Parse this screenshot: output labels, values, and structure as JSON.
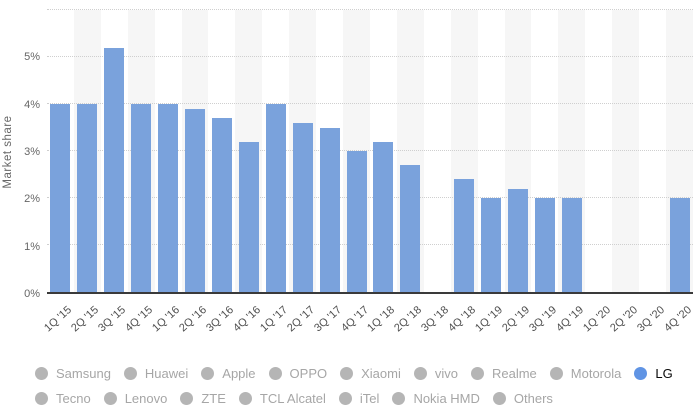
{
  "chart_data": {
    "type": "bar",
    "title": "",
    "xlabel": "",
    "ylabel": "Market share",
    "unit": "%",
    "categories": [
      "1Q '15",
      "2Q '15",
      "3Q '15",
      "4Q '15",
      "1Q '16",
      "2Q '16",
      "3Q '16",
      "4Q '16",
      "1Q '17",
      "2Q '17",
      "3Q '17",
      "4Q '17",
      "1Q '18",
      "2Q '18",
      "3Q '18",
      "4Q '18",
      "1Q '19",
      "2Q '19",
      "3Q '19",
      "4Q '19",
      "1Q '20",
      "2Q '20",
      "3Q '20",
      "4Q '20"
    ],
    "values": [
      4.0,
      4.0,
      5.2,
      4.0,
      4.0,
      3.9,
      3.7,
      3.2,
      4.0,
      3.6,
      3.5,
      3.0,
      3.2,
      2.7,
      null,
      2.4,
      2.0,
      2.2,
      2.0,
      2.0,
      null,
      null,
      null,
      2.0
    ],
    "y_ticks": [
      0,
      1,
      2,
      3,
      4,
      5
    ],
    "ylim": [
      0,
      6
    ],
    "grid": "horizontal-dotted",
    "legend_position": "bottom",
    "bar_color": "#7aa2dc",
    "stripe_color": "#f6f6f6",
    "gridline_color": "#cfcfcf",
    "axis_line_color": "#3a3a3a"
  },
  "legend": {
    "rows": [
      [
        {
          "label": "Samsung",
          "active": false
        },
        {
          "label": "Huawei",
          "active": false
        },
        {
          "label": "Apple",
          "active": false
        },
        {
          "label": "OPPO",
          "active": false
        },
        {
          "label": "Xiaomi",
          "active": false
        },
        {
          "label": "vivo",
          "active": false
        },
        {
          "label": "Realme",
          "active": false
        },
        {
          "label": "Motorola",
          "active": false
        },
        {
          "label": "LG",
          "active": true
        }
      ],
      [
        {
          "label": "Tecno",
          "active": false
        },
        {
          "label": "Lenovo",
          "active": false
        },
        {
          "label": "ZTE",
          "active": false
        },
        {
          "label": "TCL Alcatel",
          "active": false
        },
        {
          "label": "iTel",
          "active": false
        },
        {
          "label": "Nokia HMD",
          "active": false
        },
        {
          "label": "Others",
          "active": false
        }
      ]
    ],
    "active_dot_color": "#6094e4",
    "inactive_dot_color": "#b5b5b5",
    "active_text_color": "#0a0a0a",
    "inactive_text_color": "#a6a6a6"
  }
}
